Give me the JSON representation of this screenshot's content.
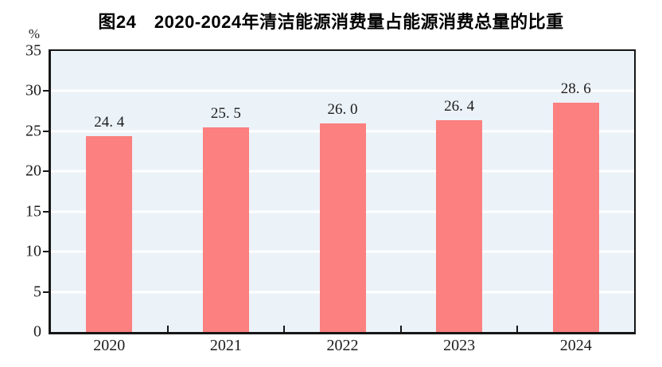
{
  "chart_data": {
    "type": "bar",
    "title": "图24　2020-2024年清洁能源消费量占能源消费总量的比重",
    "categories": [
      "2020",
      "2021",
      "2022",
      "2023",
      "2024"
    ],
    "values": [
      24.4,
      25.5,
      26.0,
      26.4,
      28.6
    ],
    "value_labels": [
      "24. 4",
      "25. 5",
      "26. 0",
      "26. 4",
      "28. 6"
    ],
    "xlabel": "",
    "ylabel": "%",
    "ylim": [
      0,
      35
    ],
    "yticks": [
      0,
      5,
      10,
      15,
      20,
      25,
      30,
      35
    ],
    "grid": true,
    "legend": false,
    "colors": {
      "bar": "#FB807F",
      "plot_background": "#EBF2F8",
      "gridline": "#FFFFFF",
      "axis": "#161616",
      "text": "#1C1C1C"
    }
  }
}
